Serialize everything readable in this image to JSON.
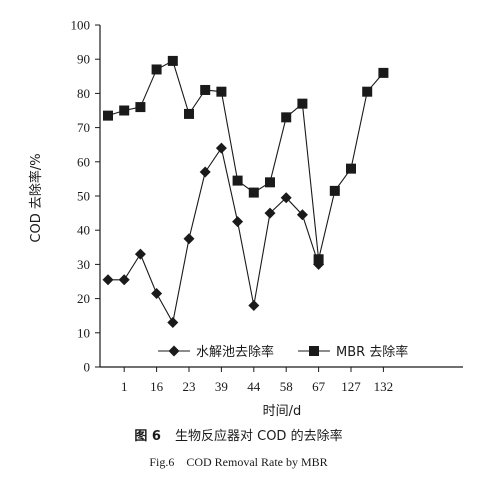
{
  "chart_data": {
    "type": "line",
    "title": "",
    "xlabel": "时间/d",
    "ylabel": "COD 去除率/%",
    "ylim": [
      0,
      100
    ],
    "yticks": [
      0,
      10,
      20,
      30,
      40,
      50,
      60,
      70,
      80,
      90,
      100
    ],
    "x_tick_labels": [
      "1",
      "16",
      "23",
      "39",
      "44",
      "58",
      "67",
      "127",
      "132"
    ],
    "num_points": 22,
    "grid": false,
    "legend_position": "bottom-right",
    "series": [
      {
        "name": "水解池去除率",
        "marker": "diamond",
        "color": "#1a1a1a",
        "values": [
          25.5,
          25.5,
          33,
          21.5,
          13,
          37.5,
          57,
          64,
          42.5,
          18,
          45,
          49.5,
          44.5,
          30,
          null,
          null,
          null,
          null,
          null,
          null,
          null,
          null
        ]
      },
      {
        "name": "MBR 去除率",
        "marker": "square",
        "color": "#1a1a1a",
        "values": [
          73.5,
          75,
          76,
          87,
          89.5,
          74,
          81,
          80.5,
          54.5,
          51,
          54,
          73,
          77,
          31.5,
          51.5,
          58,
          80.5,
          86,
          null,
          null,
          null,
          null
        ]
      }
    ]
  },
  "caption": {
    "cn_number": "图 6",
    "cn_text": "生物反应器对 COD 的去除率",
    "en_number": "Fig.6",
    "en_text": "COD Removal Rate by MBR"
  }
}
